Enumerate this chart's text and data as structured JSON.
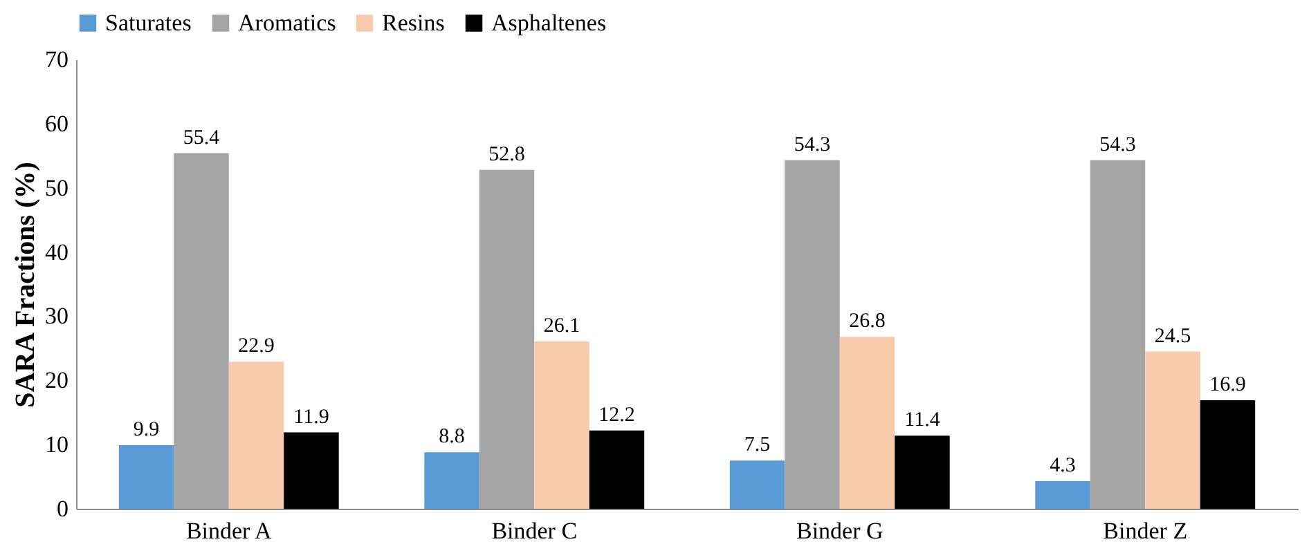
{
  "chart_data": {
    "type": "bar",
    "ylabel": "SARA Fractions (%)",
    "categories": [
      "Binder A",
      "Binder C",
      "Binder G",
      "Binder Z"
    ],
    "series": [
      {
        "name": "Saturates",
        "color": "#5b9bd5",
        "values": [
          9.9,
          8.8,
          7.5,
          4.3
        ]
      },
      {
        "name": "Aromatics",
        "color": "#a5a5a5",
        "values": [
          55.4,
          52.8,
          54.3,
          54.3
        ]
      },
      {
        "name": "Resins",
        "color": "#f8cbad",
        "values": [
          22.9,
          26.1,
          26.8,
          24.5
        ]
      },
      {
        "name": "Asphaltenes",
        "color": "#000000",
        "values": [
          11.9,
          12.2,
          11.4,
          16.9
        ]
      }
    ],
    "ylim": [
      0,
      70
    ],
    "yticks": [
      0,
      10,
      20,
      30,
      40,
      50,
      60,
      70
    ],
    "data_labels": true,
    "grid": false,
    "legend": "top"
  }
}
